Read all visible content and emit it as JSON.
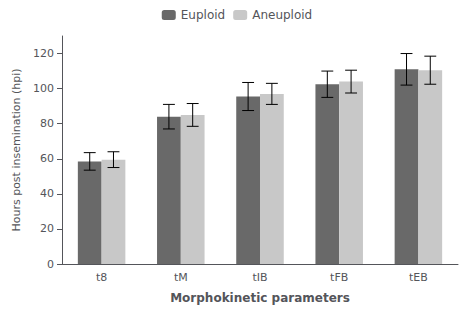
{
  "chart_data": {
    "type": "bar",
    "categories": [
      "t8",
      "tM",
      "tIB",
      "tFB",
      "tEB"
    ],
    "series": [
      {
        "name": "Euploid",
        "color": "#696969",
        "values": [
          58.5,
          84.0,
          95.5,
          102.5,
          111.0
        ],
        "errors": [
          5.0,
          7.0,
          8.0,
          7.5,
          9.0
        ]
      },
      {
        "name": "Aneuploid",
        "color": "#c8c8c8",
        "values": [
          59.5,
          85.0,
          97.0,
          104.0,
          110.5
        ],
        "errors": [
          4.5,
          6.5,
          6.0,
          6.5,
          8.0
        ]
      }
    ],
    "xlabel": "Morphokinetic parameters",
    "ylabel": "Hours post insemination (hpi)",
    "ylim": [
      0,
      130
    ],
    "yticks": [
      0,
      20,
      40,
      60,
      80,
      100,
      120
    ],
    "grid": false,
    "legend": "top"
  }
}
